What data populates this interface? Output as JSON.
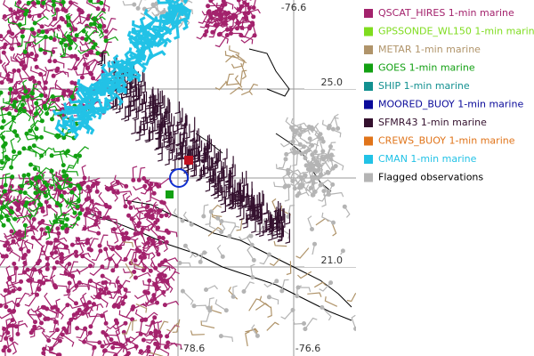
{
  "map": {
    "grid_labels": [
      "-76.6",
      "25.0",
      "21.0",
      "-78.6",
      "-76.6"
    ],
    "legend": {
      "items": [
        {
          "label": "QSCAT_HIRES 1-min marine",
          "color": "#a3226c"
        },
        {
          "label": "GPSSONDE_WL150 1-min marine",
          "color": "#7fdc1e"
        },
        {
          "label": "METAR 1-min marine",
          "color": "#b0946a"
        },
        {
          "label": "GOES 1-min marine",
          "color": "#12a012"
        },
        {
          "label": "SHIP 1-min marine",
          "color": "#129090"
        },
        {
          "label": "MOORED_BUOY 1-min marine",
          "color": "#0a0a9a"
        },
        {
          "label": "SFMR43 1-min marine",
          "color": "#34112e"
        },
        {
          "label": "CREWS_BUOY 1-min marine",
          "color": "#e0741a"
        },
        {
          "label": "CMAN 1-min marine",
          "color": "#22c2e6"
        },
        {
          "label": "Flagged observations",
          "color": "#b4b4b4"
        }
      ]
    }
  }
}
